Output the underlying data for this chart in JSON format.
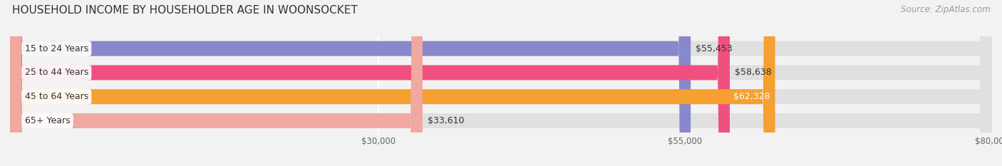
{
  "title": "HOUSEHOLD INCOME BY HOUSEHOLDER AGE IN WOONSOCKET",
  "source": "Source: ZipAtlas.com",
  "categories": [
    "15 to 24 Years",
    "25 to 44 Years",
    "45 to 64 Years",
    "65+ Years"
  ],
  "values": [
    55453,
    58638,
    62328,
    33610
  ],
  "bar_colors": [
    "#8888cc",
    "#f05080",
    "#f5a030",
    "#f0a8a0"
  ],
  "value_labels": [
    "$55,453",
    "$58,638",
    "$62,328",
    "$33,610"
  ],
  "value_label_inside": [
    false,
    false,
    true,
    false
  ],
  "xlim": [
    0,
    80000
  ],
  "xmin": 0,
  "xticks": [
    30000,
    55000,
    80000
  ],
  "xtick_labels": [
    "$30,000",
    "$55,000",
    "$80,000"
  ],
  "background_color": "#f2f2f2",
  "bar_bg_color": "#e0e0e0",
  "title_fontsize": 11,
  "source_fontsize": 8.5,
  "bar_label_fontsize": 9,
  "value_label_fontsize": 9
}
